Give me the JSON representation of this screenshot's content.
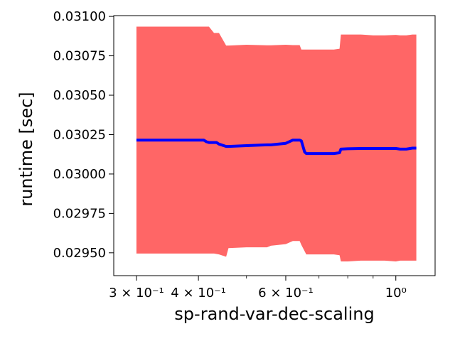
{
  "chart_data": {
    "type": "line",
    "xscale": "log",
    "xlabel": "sp-rand-var-dec-scaling",
    "ylabel": "runtime [sec]",
    "xlim": [
      0.27,
      1.2
    ],
    "ylim": [
      0.029355,
      0.031005
    ],
    "x_ticks": [
      {
        "value": 0.3,
        "label": "3 × 10⁻¹"
      },
      {
        "value": 0.4,
        "label": "4 × 10⁻¹"
      },
      {
        "value": 0.6,
        "label": "6 × 10⁻¹"
      },
      {
        "value": 1.0,
        "label": "10⁰"
      }
    ],
    "x_minor_ticks": [
      0.5,
      0.7,
      0.8,
      0.9
    ],
    "y_ticks": [
      {
        "value": 0.0295,
        "label": "0.02950"
      },
      {
        "value": 0.02975,
        "label": "0.02975"
      },
      {
        "value": 0.03,
        "label": "0.03000"
      },
      {
        "value": 0.03025,
        "label": "0.03025"
      },
      {
        "value": 0.0305,
        "label": "0.03050"
      },
      {
        "value": 0.03075,
        "label": "0.03075"
      },
      {
        "value": 0.031,
        "label": "0.03100"
      }
    ],
    "grid": false,
    "series": [
      {
        "style": "line",
        "color": "#0000ff",
        "x": [
          0.3,
          0.41,
          0.415,
          0.42,
          0.435,
          0.44,
          0.455,
          0.46,
          0.5,
          0.55,
          0.56,
          0.6,
          0.62,
          0.64,
          0.645,
          0.655,
          0.66,
          0.68,
          0.7,
          0.75,
          0.77,
          0.775,
          0.8,
          0.85,
          0.9,
          0.95,
          1.0,
          1.02,
          1.05,
          1.08,
          1.1
        ],
        "y": [
          0.030215,
          0.030215,
          0.030205,
          0.0302,
          0.0302,
          0.03019,
          0.030175,
          0.030175,
          0.03018,
          0.030185,
          0.030185,
          0.030195,
          0.030215,
          0.030215,
          0.03021,
          0.03014,
          0.03013,
          0.03013,
          0.03013,
          0.03013,
          0.030135,
          0.030158,
          0.03016,
          0.030162,
          0.030162,
          0.030162,
          0.030162,
          0.030158,
          0.030158,
          0.030164,
          0.030164
        ]
      }
    ],
    "band": {
      "color": "#ff6666",
      "x": [
        0.3,
        0.42,
        0.43,
        0.44,
        0.455,
        0.46,
        0.5,
        0.55,
        0.56,
        0.6,
        0.62,
        0.64,
        0.645,
        0.66,
        0.68,
        0.7,
        0.75,
        0.77,
        0.775,
        0.8,
        0.85,
        0.9,
        0.95,
        1.0,
        1.02,
        1.05,
        1.08,
        1.1
      ],
      "upper": [
        0.030935,
        0.030935,
        0.030895,
        0.030895,
        0.030815,
        0.030815,
        0.03082,
        0.030817,
        0.030817,
        0.03082,
        0.030818,
        0.030818,
        0.03079,
        0.03079,
        0.03079,
        0.03079,
        0.03079,
        0.030795,
        0.030885,
        0.030885,
        0.030885,
        0.03088,
        0.03088,
        0.030883,
        0.03088,
        0.03088,
        0.030885,
        0.030885
      ],
      "lower": [
        0.029495,
        0.029495,
        0.029495,
        0.02949,
        0.029475,
        0.02953,
        0.029535,
        0.029535,
        0.029545,
        0.029555,
        0.029575,
        0.029575,
        0.02955,
        0.02949,
        0.02949,
        0.02949,
        0.02949,
        0.029485,
        0.029445,
        0.029445,
        0.02945,
        0.02945,
        0.02945,
        0.029445,
        0.02945,
        0.02945,
        0.02945,
        0.02945
      ]
    }
  }
}
